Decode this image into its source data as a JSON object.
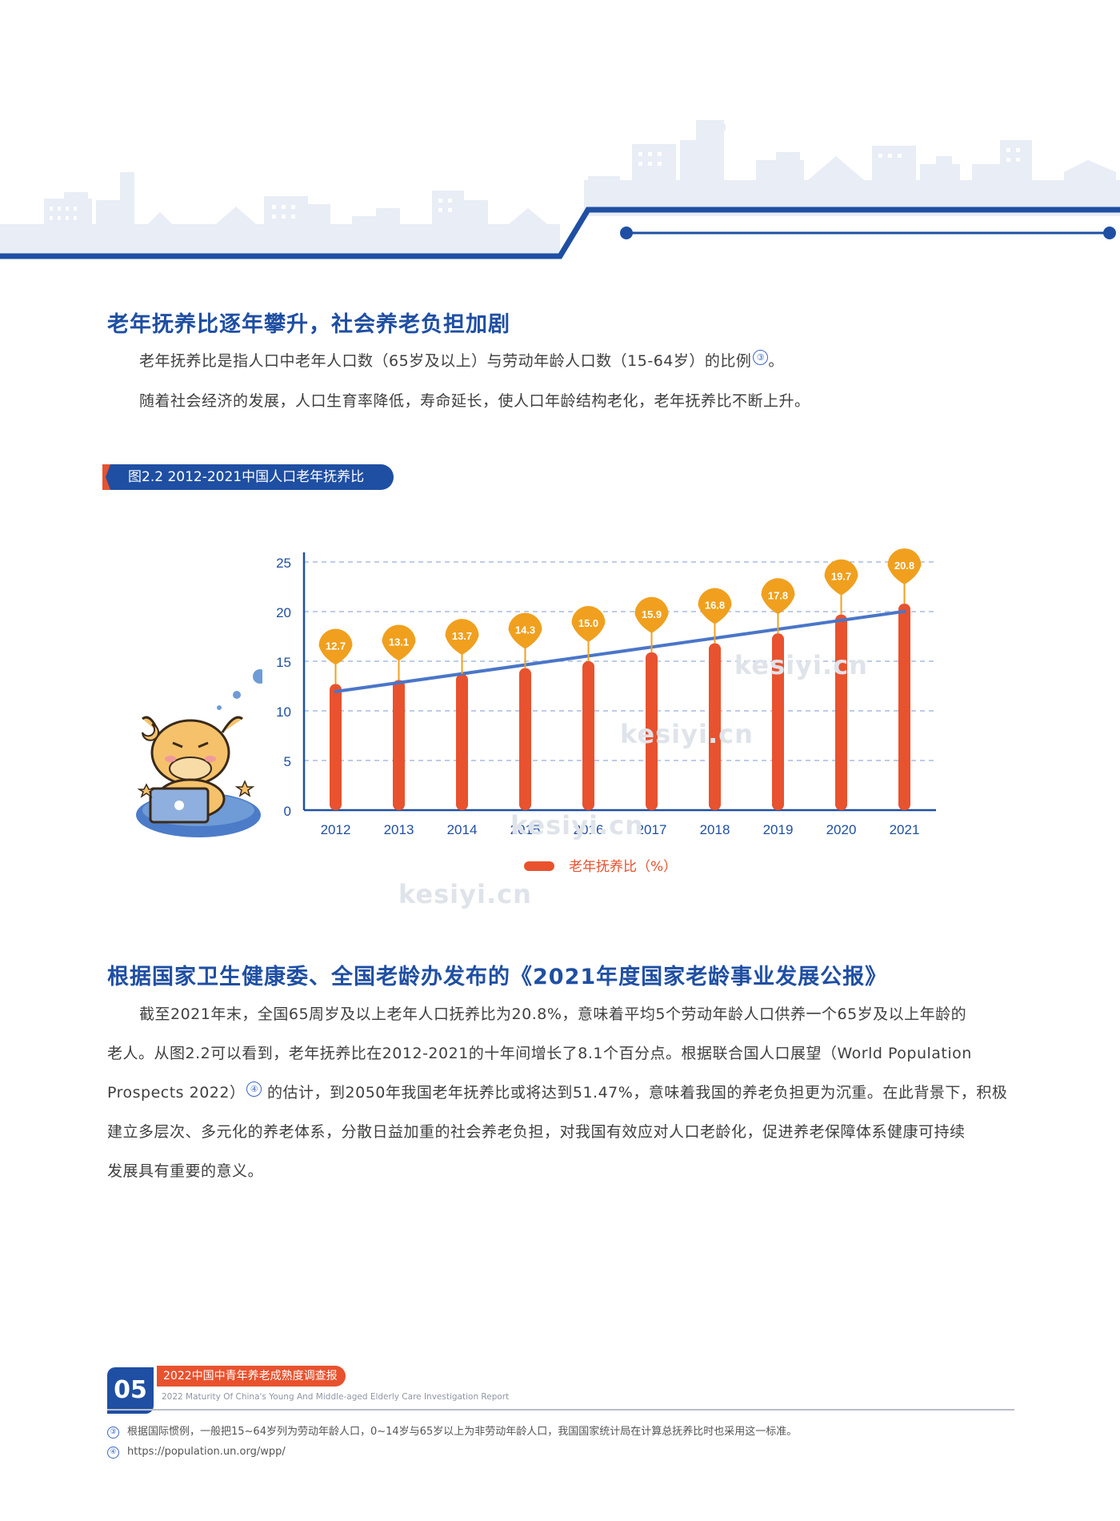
{
  "section1": {
    "title": "老年抚养比逐年攀升，社会养老负担加剧",
    "para1": "老年抚养比是指人口中老年人口数（65岁及以上）与劳动年龄人口数（15-64岁）的比例",
    "para1_note": "③",
    "para1_end": "。",
    "para2": "随着社会经济的发展，人口生育率降低，寿命延长，使人口年龄结构老化，老年抚养比不断上升。"
  },
  "figure": {
    "tag": "图2.2  2012-2021中国人口老年抚养比"
  },
  "chart_data": {
    "type": "bar",
    "categories": [
      "2012",
      "2013",
      "2014",
      "2015",
      "2016",
      "2017",
      "2018",
      "2019",
      "2020",
      "2021"
    ],
    "values": [
      12.7,
      13.1,
      13.7,
      14.3,
      15.0,
      15.9,
      16.8,
      17.8,
      19.7,
      20.8
    ],
    "value_labels": [
      "12.7",
      "13.1",
      "13.7",
      "14.3",
      "15.0",
      "15.9",
      "16.8",
      "17.8",
      "19.7",
      "20.8"
    ],
    "yticks": [
      "0",
      "5",
      "10",
      "15",
      "20",
      "25"
    ],
    "ylim": [
      0,
      25
    ],
    "trendline": true,
    "grid": "dashed horizontal",
    "series": [
      {
        "name": "老年抚养比（%）"
      }
    ],
    "legend_position": "bottom",
    "colors": {
      "bar": "#e8522e",
      "label_pin": "#f0a01e",
      "trend": "#4a76c8",
      "axis": "#1f4fa3",
      "grid": "#aabbe0"
    }
  },
  "section2": {
    "title": "根据国家卫生健康委、全国老龄办发布的《2021年度国家老龄事业发展公报》",
    "line1": "截至2021年末，全国65周岁及以上老年人口抚养比为20.8%，意味着平均5个劳动年龄人口供养一个65岁及以上年龄的",
    "line2": "老人。从图2.2可以看到，老年抚养比在2012-2021的十年间增长了8.1个百分点。根据联合国人口展望（World  Population",
    "line3a": "Prospects 2022）",
    "line3_note": "④",
    "line3b": " 的估计，到2050年我国老年抚养比或将达到51.47%，意味着我国的养老负担更为沉重。在此背景下，积极",
    "line4": "建立多层次、多元化的养老体系，分散日益加重的社会养老负担，对我国有效应对人口老龄化，促进养老保障体系健康可持续",
    "line5": "发展具有重要的意义。"
  },
  "watermark": "kesiyi.cn",
  "footer": {
    "page_number": "05",
    "report_title": "2022中国中青年养老成熟度调查报告",
    "report_title_en": "2022 Maturity Of China's Young And Middle-aged Elderly Care Investigation Report",
    "footnote3_mark": "③",
    "footnote3": "根据国际惯例，一般把15~64岁列为劳动年龄人口，0~14岁与65岁以上为非劳动年龄人口，我国国家统计局在计算总抚养比时也采用这一标准。",
    "footnote4_mark": "④",
    "footnote4": "https://population.un.org/wpp/"
  },
  "colors": {
    "primary": "#1f4fa3",
    "accent": "#e8522e",
    "skyline": "#e6ebf4"
  }
}
